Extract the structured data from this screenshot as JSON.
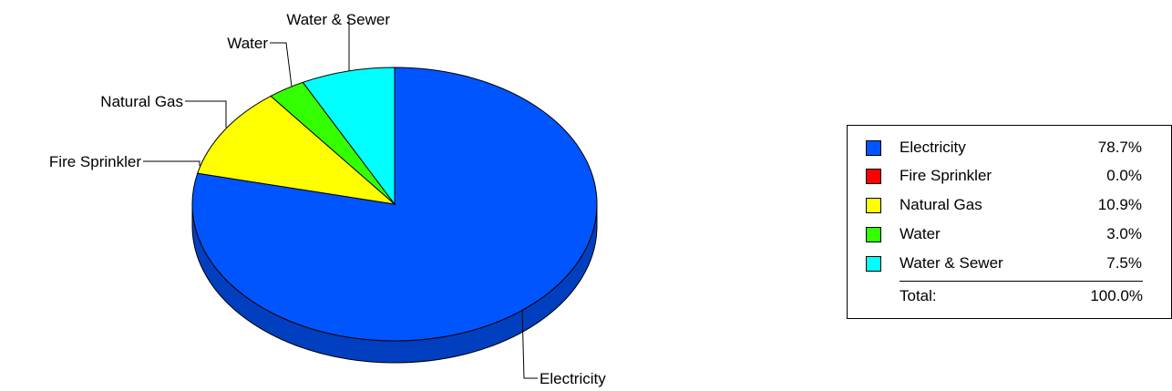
{
  "chart_data": {
    "type": "pie",
    "title": "",
    "slices": [
      {
        "name": "Electricity",
        "value": 78.7,
        "label": "78.7%",
        "color": "#0055ff",
        "side_color": "#0040c0"
      },
      {
        "name": "Fire Sprinkler",
        "value": 0.0,
        "label": "0.0%",
        "color": "#ff0000",
        "side_color": "#c00000"
      },
      {
        "name": "Natural Gas",
        "value": 10.9,
        "label": "10.9%",
        "color": "#ffff00",
        "side_color": "#c0c000"
      },
      {
        "name": "Water",
        "value": 3.0,
        "label": "3.0%",
        "color": "#33ff00",
        "side_color": "#26c000"
      },
      {
        "name": "Water & Sewer",
        "value": 7.5,
        "label": "7.5%",
        "color": "#00ffff",
        "side_color": "#00c0c0"
      }
    ],
    "legend": {
      "position": "right",
      "total_label": "Total:",
      "total_value": "100.0%"
    }
  }
}
